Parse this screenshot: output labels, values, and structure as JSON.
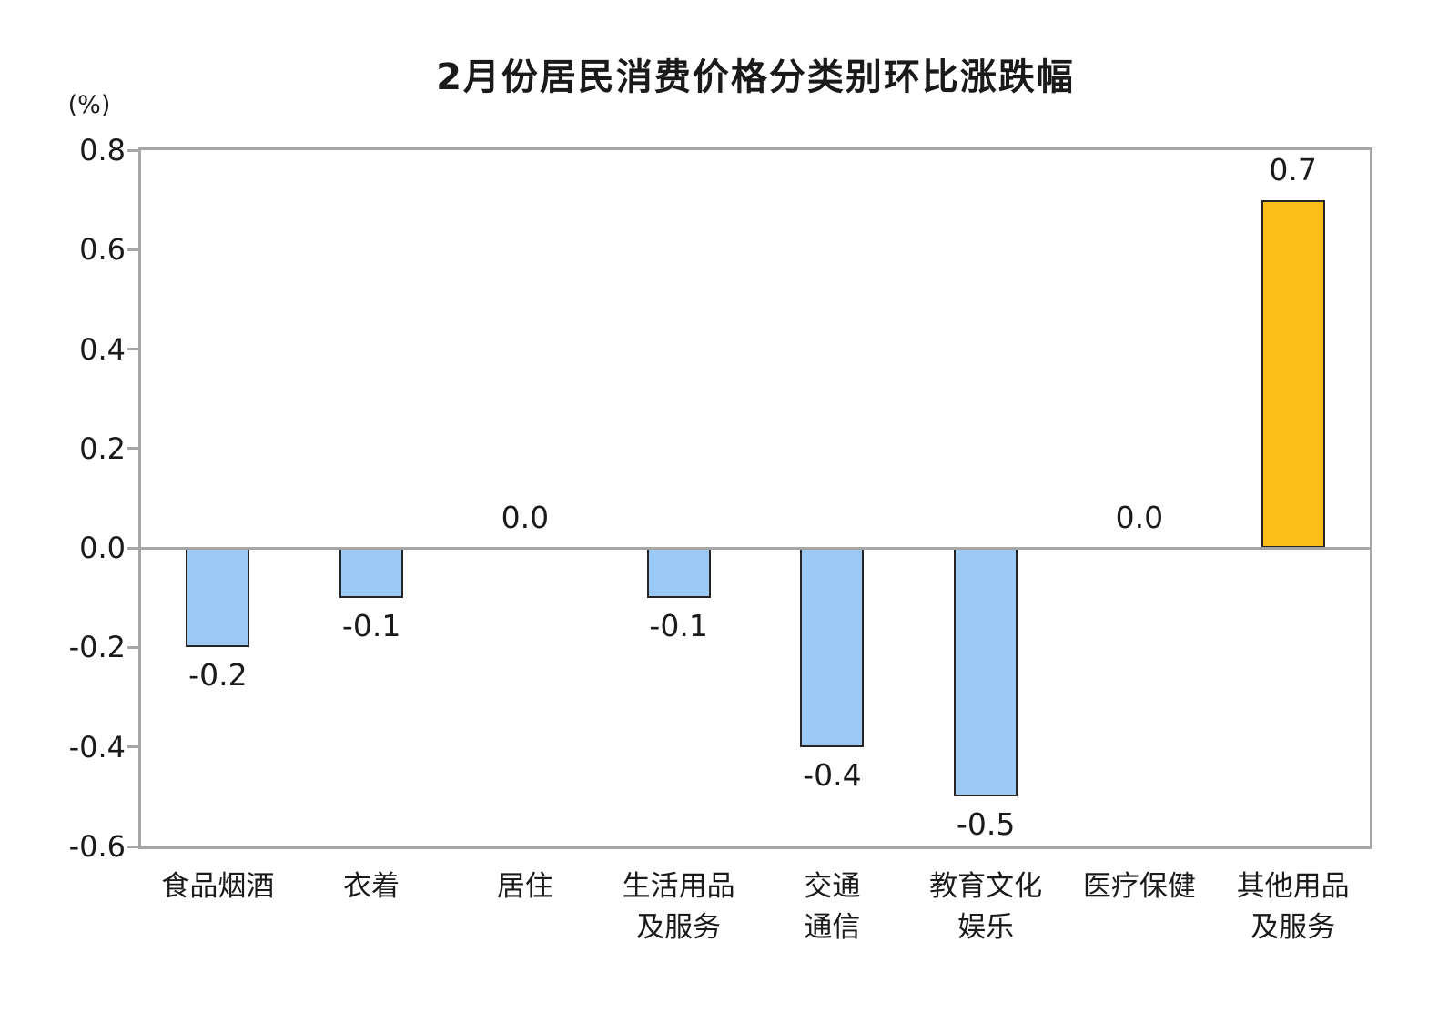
{
  "title": "2月份居民消费价格分类别环比涨跌幅",
  "colors": {
    "positive_bar": "#FBBD17",
    "negative_bar": "#9DC9F5",
    "bar_border": "#262626",
    "axis_line": "#A6A6A6",
    "text": "#1A1A1A"
  },
  "chart_data": {
    "type": "bar",
    "title": "2月份居民消费价格分类别环比涨跌幅",
    "ylabel": "(%)",
    "categories": [
      "食品烟酒",
      "衣着",
      "居住",
      "生活用品及服务",
      "交通通信",
      "教育文化娱乐",
      "医疗保健",
      "其他用品及服务"
    ],
    "category_display_lines": [
      [
        "食品烟酒"
      ],
      [
        "衣着"
      ],
      [
        "居住"
      ],
      [
        "生活用品",
        "及服务"
      ],
      [
        "交通",
        "通信"
      ],
      [
        "教育文化",
        "娱乐"
      ],
      [
        "医疗保健"
      ],
      [
        "其他用品",
        "及服务"
      ]
    ],
    "values": [
      -0.2,
      -0.1,
      0.0,
      -0.1,
      -0.4,
      -0.5,
      0.0,
      0.7
    ],
    "data_labels": [
      "-0.2",
      "-0.1",
      "0.0",
      "-0.1",
      "-0.4",
      "-0.5",
      "0.0",
      "0.7"
    ],
    "ylim": [
      -0.6,
      0.8
    ],
    "ytick_interval": 0.2,
    "ytick_labels": [
      "0.8",
      "0.6",
      "0.4",
      "0.2",
      "0.0",
      "-0.2",
      "-0.4",
      "-0.6"
    ],
    "grid": false,
    "legend": "none"
  }
}
